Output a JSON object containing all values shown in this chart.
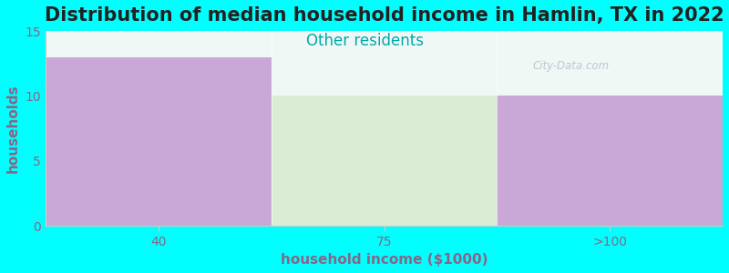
{
  "title": "Distribution of median household income in Hamlin, TX in 2022",
  "subtitle": "Other residents",
  "subtitle_color": "#00AAAA",
  "xlabel": "household income ($1000)",
  "ylabel": "households",
  "background_color": "#00FFFF",
  "plot_bg_color": "#F0F8F5",
  "categories": [
    "40",
    "75",
    ">100"
  ],
  "values": [
    13,
    10,
    10
  ],
  "bar_colors": [
    "#C9A8D8",
    "#D9EDD5",
    "#C9A8D8"
  ],
  "ylim": [
    0,
    15
  ],
  "yticks": [
    0,
    5,
    10,
    15
  ],
  "title_fontsize": 15,
  "subtitle_fontsize": 12,
  "label_fontsize": 11,
  "tick_fontsize": 10,
  "watermark": "City-Data.com",
  "watermark_color": "#BBBBCC",
  "tick_color": "#886688"
}
